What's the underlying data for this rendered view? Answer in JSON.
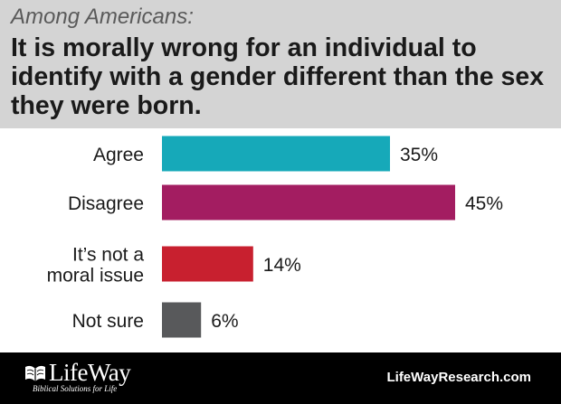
{
  "header": {
    "subtitle": "Among Americans:",
    "title": "It is morally wrong for an individual to identify with a gender different than the sex they were born."
  },
  "chart_data": {
    "type": "bar",
    "orientation": "horizontal",
    "categories": [
      [
        "Agree"
      ],
      [
        "Disagree"
      ],
      [
        "It’s not a",
        "moral issue"
      ],
      [
        "Not sure"
      ]
    ],
    "values": [
      35,
      45,
      14,
      6
    ],
    "value_labels": [
      "35%",
      "45%",
      "14%",
      "6%"
    ],
    "colors": [
      "#16a9b9",
      "#a31d61",
      "#c8202f",
      "#58595b"
    ],
    "xlim": [
      0,
      100
    ],
    "grid": false,
    "legend": "none"
  },
  "footer": {
    "logo_name": "LifeWay",
    "logo_tagline": "Biblical Solutions for Life",
    "website": "LifeWayResearch.com"
  },
  "icons": {
    "logo_mark": "open-book-icon"
  }
}
